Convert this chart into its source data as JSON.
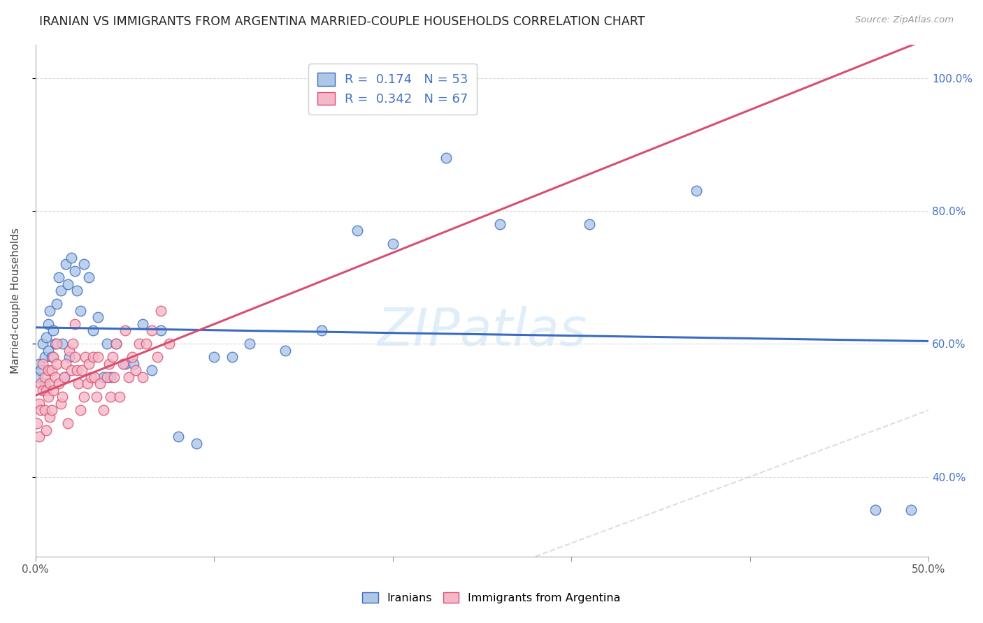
{
  "title": "IRANIAN VS IMMIGRANTS FROM ARGENTINA MARRIED-COUPLE HOUSEHOLDS CORRELATION CHART",
  "source": "Source: ZipAtlas.com",
  "ylabel": "Married-couple Households",
  "xlim": [
    0.0,
    0.5
  ],
  "ylim": [
    0.28,
    1.05
  ],
  "ytick_vals": [
    0.4,
    0.6,
    0.8,
    1.0
  ],
  "ytick_labels": [
    "40.0%",
    "60.0%",
    "80.0%",
    "100.0%"
  ],
  "xtick_vals": [
    0.0,
    0.1,
    0.2,
    0.3,
    0.4,
    0.5
  ],
  "xtick_labels": [
    "0.0%",
    "",
    "",
    "",
    "",
    "50.0%"
  ],
  "legend_R1": "0.174",
  "legend_N1": "53",
  "legend_R2": "0.342",
  "legend_N2": "67",
  "color_iranian": "#aec6e8",
  "color_argentina": "#f5b8c8",
  "color_line_iranian": "#3a6bbf",
  "color_line_argentina": "#d94f70",
  "color_diagonal": "#cccccc",
  "watermark": "ZIPatlas",
  "iranians_x": [
    0.001,
    0.002,
    0.003,
    0.004,
    0.005,
    0.005,
    0.006,
    0.007,
    0.007,
    0.008,
    0.009,
    0.01,
    0.011,
    0.012,
    0.013,
    0.014,
    0.015,
    0.016,
    0.017,
    0.018,
    0.019,
    0.02,
    0.022,
    0.023,
    0.025,
    0.027,
    0.03,
    0.032,
    0.035,
    0.038,
    0.04,
    0.042,
    0.045,
    0.05,
    0.055,
    0.06,
    0.065,
    0.07,
    0.08,
    0.09,
    0.1,
    0.11,
    0.12,
    0.14,
    0.16,
    0.18,
    0.2,
    0.23,
    0.26,
    0.31,
    0.37,
    0.47,
    0.49
  ],
  "iranians_y": [
    0.55,
    0.57,
    0.56,
    0.6,
    0.58,
    0.54,
    0.61,
    0.59,
    0.63,
    0.65,
    0.58,
    0.62,
    0.6,
    0.66,
    0.7,
    0.68,
    0.6,
    0.55,
    0.72,
    0.69,
    0.58,
    0.73,
    0.71,
    0.68,
    0.65,
    0.72,
    0.7,
    0.62,
    0.64,
    0.55,
    0.6,
    0.55,
    0.6,
    0.57,
    0.57,
    0.63,
    0.56,
    0.62,
    0.46,
    0.45,
    0.58,
    0.58,
    0.6,
    0.59,
    0.62,
    0.77,
    0.75,
    0.88,
    0.78,
    0.78,
    0.83,
    0.35,
    0.35
  ],
  "argentina_x": [
    0.001,
    0.002,
    0.002,
    0.003,
    0.003,
    0.004,
    0.004,
    0.005,
    0.005,
    0.006,
    0.006,
    0.007,
    0.007,
    0.008,
    0.008,
    0.009,
    0.009,
    0.01,
    0.01,
    0.011,
    0.012,
    0.012,
    0.013,
    0.014,
    0.015,
    0.016,
    0.017,
    0.018,
    0.019,
    0.02,
    0.021,
    0.022,
    0.022,
    0.023,
    0.024,
    0.025,
    0.026,
    0.027,
    0.028,
    0.029,
    0.03,
    0.031,
    0.032,
    0.033,
    0.034,
    0.035,
    0.036,
    0.038,
    0.04,
    0.041,
    0.042,
    0.043,
    0.044,
    0.045,
    0.047,
    0.049,
    0.05,
    0.052,
    0.054,
    0.056,
    0.058,
    0.06,
    0.062,
    0.065,
    0.068,
    0.07,
    0.075
  ],
  "argentina_y": [
    0.48,
    0.51,
    0.46,
    0.54,
    0.5,
    0.53,
    0.57,
    0.5,
    0.55,
    0.47,
    0.53,
    0.52,
    0.56,
    0.49,
    0.54,
    0.5,
    0.56,
    0.53,
    0.58,
    0.55,
    0.6,
    0.57,
    0.54,
    0.51,
    0.52,
    0.55,
    0.57,
    0.48,
    0.59,
    0.56,
    0.6,
    0.63,
    0.58,
    0.56,
    0.54,
    0.5,
    0.56,
    0.52,
    0.58,
    0.54,
    0.57,
    0.55,
    0.58,
    0.55,
    0.52,
    0.58,
    0.54,
    0.5,
    0.55,
    0.57,
    0.52,
    0.58,
    0.55,
    0.6,
    0.52,
    0.57,
    0.62,
    0.55,
    0.58,
    0.56,
    0.6,
    0.55,
    0.6,
    0.62,
    0.58,
    0.65,
    0.6
  ]
}
